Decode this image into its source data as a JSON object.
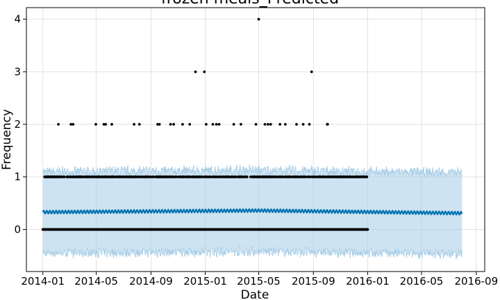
{
  "chart_data": {
    "type": "scatter",
    "title": "frozen meals_Predicted",
    "xlabel": "Date",
    "ylabel": "Frequency",
    "x_ticks": [
      "2014-01",
      "2014-05",
      "2014-09",
      "2015-01",
      "2015-05",
      "2015-09",
      "2016-01",
      "2016-05",
      "2016-09"
    ],
    "y_ticks": [
      0,
      1,
      2,
      3,
      4
    ],
    "xlim": [
      "2013-11-25",
      "2016-09-20"
    ],
    "ylim": [
      -0.8,
      4.22
    ],
    "grid": true,
    "colors": {
      "forecast": "#0072B2",
      "interval": "#a6cce6",
      "observed": "#000000"
    },
    "series": [
      {
        "type": "forecast-line",
        "x_range": [
          "2014-01-01",
          "2016-07-31"
        ],
        "values_approx": [
          {
            "date": "2014-01-01",
            "value": 0.33
          },
          {
            "date": "2015-05-01",
            "value": 0.36
          },
          {
            "date": "2016-07-31",
            "value": 0.31
          }
        ],
        "uncertainty_interval": {
          "upper_approx": 1.1,
          "lower_approx": -0.45
        }
      },
      {
        "type": "observed-points",
        "x_range": [
          "2014-01-01",
          "2016-01-01"
        ],
        "daily_zero_value": 0,
        "days_with_value_1_range": [
          "2014-01-05",
          "2015-12-31"
        ],
        "points_value_2": [
          "2014-02-05",
          "2014-03-05",
          "2014-03-10",
          "2014-04-30",
          "2014-05-18",
          "2014-05-22",
          "2014-06-05",
          "2014-07-25",
          "2014-08-06",
          "2014-09-16",
          "2014-09-20",
          "2014-10-15",
          "2014-10-22",
          "2014-11-11",
          "2014-11-27",
          "2015-01-03",
          "2015-01-18",
          "2015-01-26",
          "2015-02-01",
          "2015-03-06",
          "2015-03-22",
          "2015-04-25",
          "2015-05-15",
          "2015-05-22",
          "2015-05-28",
          "2015-06-18",
          "2015-06-30",
          "2015-07-25",
          "2015-08-09",
          "2015-08-23",
          "2015-10-02",
          "2015-10-03"
        ],
        "points_value_3": [
          "2014-12-10",
          "2014-12-30",
          "2015-08-28"
        ],
        "points_value_4": [
          "2015-05-01"
        ]
      }
    ]
  }
}
